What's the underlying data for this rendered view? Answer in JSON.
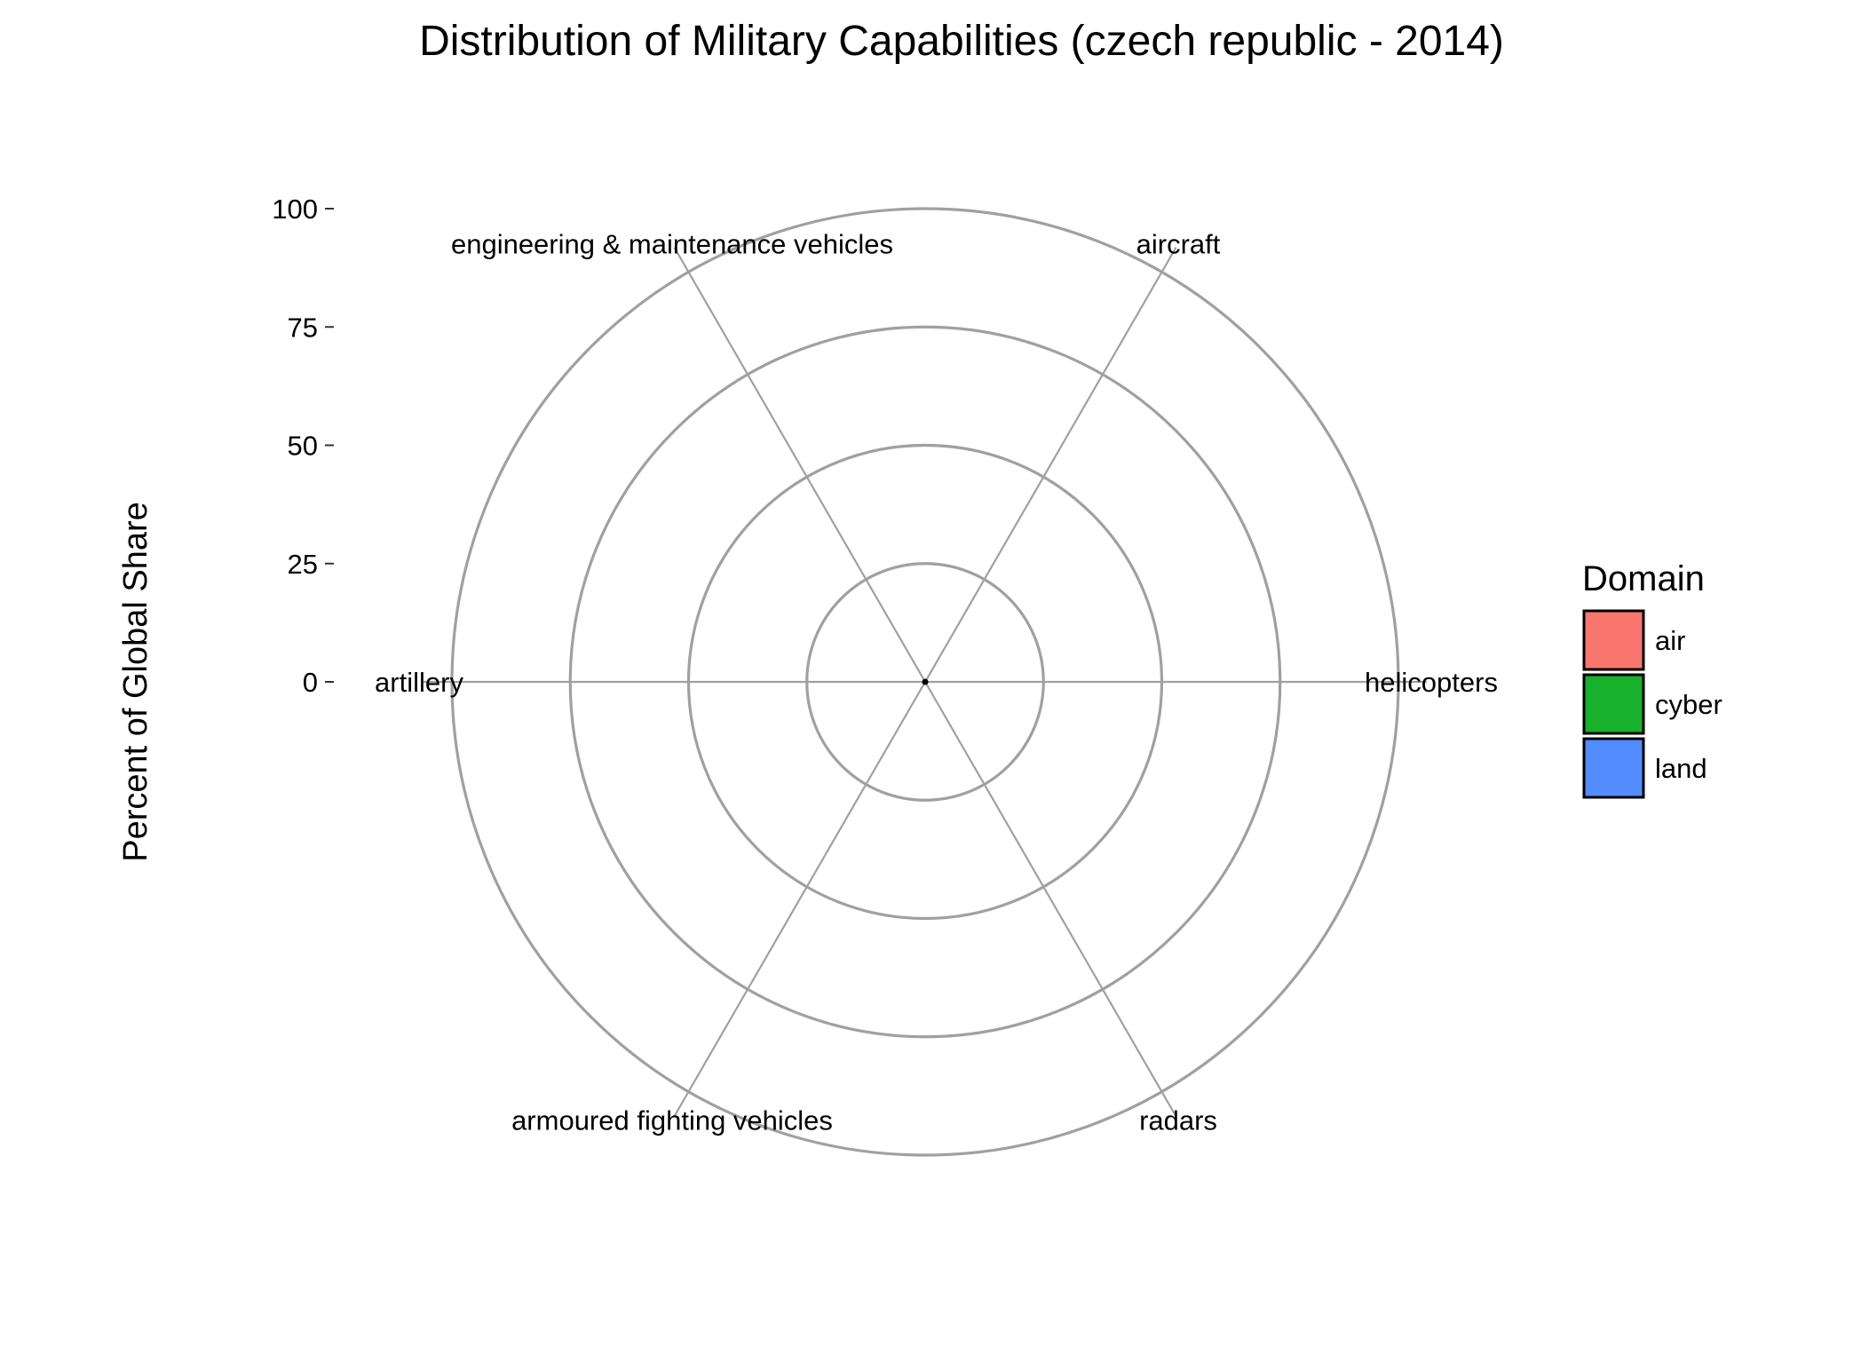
{
  "chart_data": {
    "type": "radar",
    "title": "Distribution of Military Capabilities (czech republic - 2014)",
    "xlabel": "",
    "ylabel": "Percent of Global Share",
    "ylim": [
      0,
      100
    ],
    "yticks": [
      0,
      25,
      50,
      75,
      100
    ],
    "grid": true,
    "categories": [
      "helicopters",
      "aircraft",
      "engineering & maintenance vehicles",
      "artillery",
      "armoured fighting vehicles",
      "radars"
    ],
    "series": [],
    "legend": {
      "title": "Domain",
      "position": "right",
      "entries": [
        {
          "label": "air",
          "color": "#F8766D"
        },
        {
          "label": "cyber",
          "color": "#17B12B"
        },
        {
          "label": "land",
          "color": "#538CFF"
        }
      ]
    }
  }
}
